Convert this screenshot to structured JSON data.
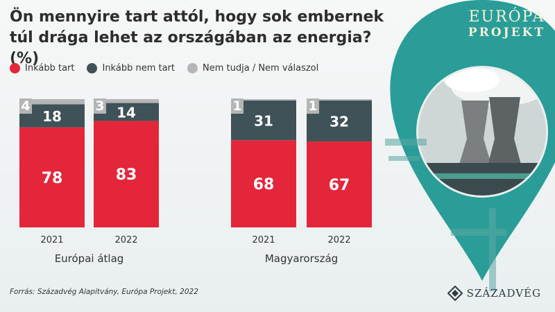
{
  "header": {
    "title": "Ön mennyire tart attól, hogy sok embernek túl drága lehet az országában az energia? (%)"
  },
  "legend": [
    {
      "label": "Inkább tart",
      "color": "#e4263a"
    },
    {
      "label": "Inkább nem tart",
      "color": "#3f5257"
    },
    {
      "label": "Nem tudja / Nem válaszol",
      "color": "#b5b5b5"
    }
  ],
  "chart_data": {
    "type": "bar",
    "stacked": true,
    "ylim": [
      0,
      100
    ],
    "groups": [
      {
        "name": "Európai átlag",
        "categories": [
          "2021",
          "2022"
        ]
      },
      {
        "name": "Magyarország",
        "categories": [
          "2021",
          "2022"
        ]
      }
    ],
    "series": [
      {
        "name": "Inkább tart",
        "color": "#e4263a",
        "values": [
          78,
          83,
          68,
          67
        ]
      },
      {
        "name": "Inkább nem tart",
        "color": "#3f5257",
        "values": [
          18,
          14,
          31,
          32
        ]
      },
      {
        "name": "Nem tudja / Nem válaszol",
        "color": "#b5b5b5",
        "values": [
          4,
          3,
          1,
          1
        ]
      }
    ]
  },
  "footer": {
    "source": "Forrás: Századvég Alapítvány, Európa Projekt, 2022"
  },
  "branding": {
    "project_line1": "EURÓPA",
    "project_line2": "PROJEKT",
    "logo_text": "SZÁZADVÉG",
    "pin_color": "#2a9d98"
  }
}
